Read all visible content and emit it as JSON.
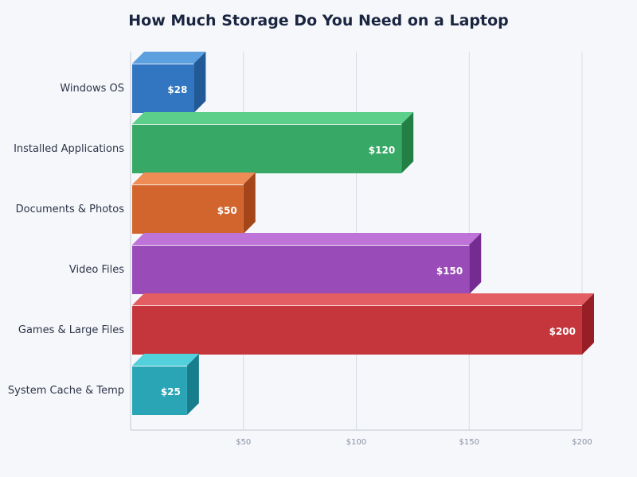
{
  "chart_data": {
    "type": "bar",
    "orientation": "horizontal",
    "style": "3d",
    "title": "How Much Storage Do You Need on a Laptop",
    "xlabel": "",
    "ylabel": "",
    "categories": [
      "Windows OS",
      "Installed Applications",
      "Documents & Photos",
      "Video Files",
      "Games & Large Files",
      "System Cache & Temp"
    ],
    "values": [
      28,
      120,
      50,
      150,
      200,
      25
    ],
    "value_labels": [
      "$28",
      "$120",
      "$50",
      "$150",
      "$200",
      "$25"
    ],
    "xlim": [
      0,
      200
    ],
    "xticks": [
      50,
      100,
      150,
      200
    ],
    "xtick_labels": [
      "$50",
      "$100",
      "$150",
      "$200"
    ],
    "grid": true,
    "legend": null,
    "colors": [
      {
        "front": "#3275c0",
        "top": "#5ca0e0",
        "side": "#225a98"
      },
      {
        "front": "#37a866",
        "top": "#5ccf8a",
        "side": "#228045"
      },
      {
        "front": "#d2652e",
        "top": "#ef8c55",
        "side": "#a4461a"
      },
      {
        "front": "#994bb8",
        "top": "#bd73d8",
        "side": "#742c92"
      },
      {
        "front": "#c4363c",
        "top": "#e25e62",
        "side": "#961e24"
      },
      {
        "front": "#29a5b6",
        "top": "#52d0dc",
        "side": "#187d8c"
      }
    ]
  }
}
